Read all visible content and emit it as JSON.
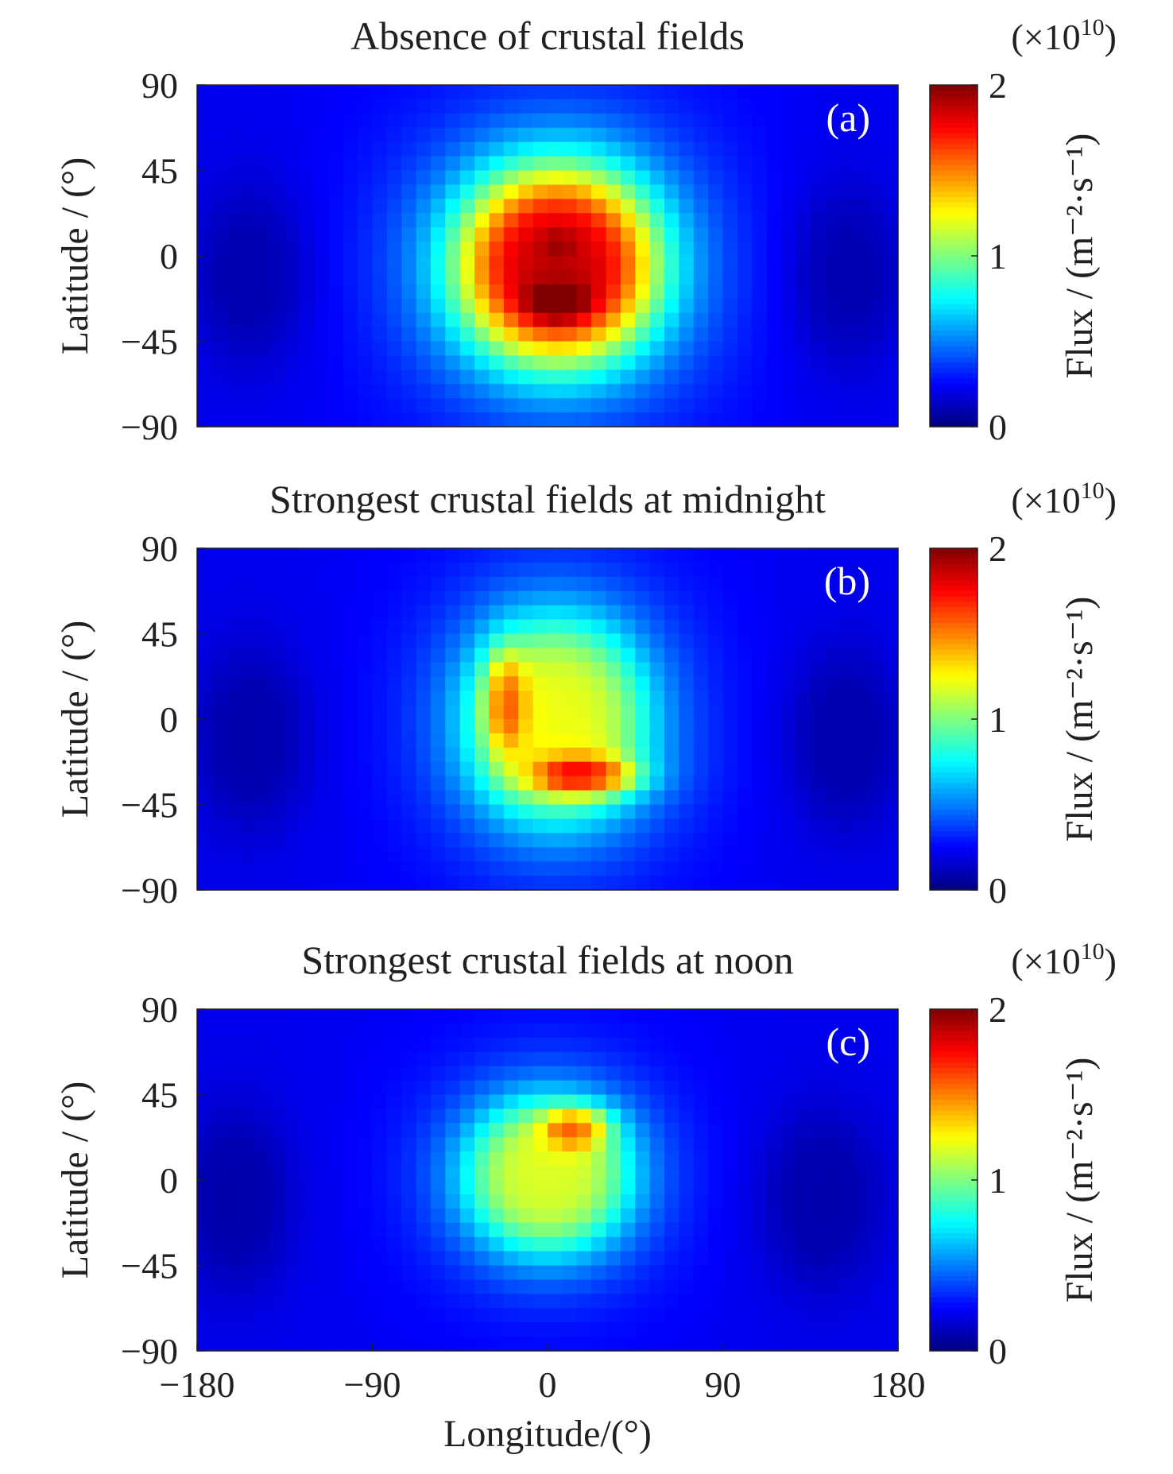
{
  "chart_data": {
    "type": "heatmap",
    "colormap": "jet",
    "x_range": [
      -180,
      180
    ],
    "y_range": [
      -90,
      90
    ],
    "x_ticks": [
      "−180",
      "−90",
      "0",
      "90",
      "180"
    ],
    "y_ticks": [
      "90",
      "45",
      "0",
      "−45",
      "−90"
    ],
    "xlabel": "Longitude/(°)",
    "ylabel": "Latitude / (°)",
    "colorbar": {
      "range": [
        0,
        2
      ],
      "ticks": [
        "2",
        "1",
        "0"
      ],
      "multiplier_base": "(×10",
      "multiplier_exp": "10",
      "multiplier_close": ")",
      "label": "Flux / (m⁻²·s⁻¹)"
    },
    "panels": [
      {
        "letter": "(a)",
        "title": "Absence of crustal fields",
        "background": 0.22,
        "blobs": [
          {
            "lon": -152,
            "lat": -10,
            "sx": 30,
            "sy": 48,
            "amp": -0.14
          },
          {
            "lon": 152,
            "lat": -10,
            "sx": 30,
            "sy": 48,
            "amp": -0.14
          },
          {
            "lon": 5,
            "lat": -5,
            "sx": 52,
            "sy": 52,
            "amp": 1.62
          },
          {
            "lon": 5,
            "lat": -25,
            "sx": 16,
            "sy": 10,
            "amp": 0.3
          },
          {
            "lon": 5,
            "lat": 5,
            "sx": 8,
            "sy": 8,
            "amp": 0.1
          }
        ]
      },
      {
        "letter": "(b)",
        "title": "Strongest crustal fields at midnight",
        "background": 0.22,
        "blobs": [
          {
            "lon": -152,
            "lat": -10,
            "sx": 30,
            "sy": 48,
            "amp": -0.14
          },
          {
            "lon": 152,
            "lat": -10,
            "sx": 30,
            "sy": 48,
            "amp": -0.14
          },
          {
            "lon": 5,
            "lat": 0,
            "sx": 48,
            "sy": 55,
            "amp": 0.98
          },
          {
            "lon": -22,
            "lat": 10,
            "sx": 10,
            "sy": 26,
            "amp": 0.42
          },
          {
            "lon": 20,
            "lat": -30,
            "sx": 26,
            "sy": 10,
            "amp": 0.62
          }
        ]
      },
      {
        "letter": "(c)",
        "title": "Strongest crustal fields at noon",
        "background": 0.22,
        "blobs": [
          {
            "lon": -160,
            "lat": -10,
            "sx": 30,
            "sy": 48,
            "amp": -0.14
          },
          {
            "lon": 140,
            "lat": -10,
            "sx": 32,
            "sy": 48,
            "amp": -0.14
          },
          {
            "lon": 0,
            "lat": 2,
            "sx": 44,
            "sy": 42,
            "amp": 0.95
          },
          {
            "lon": 15,
            "lat": 28,
            "sx": 16,
            "sy": 10,
            "amp": 0.52
          }
        ]
      }
    ]
  }
}
